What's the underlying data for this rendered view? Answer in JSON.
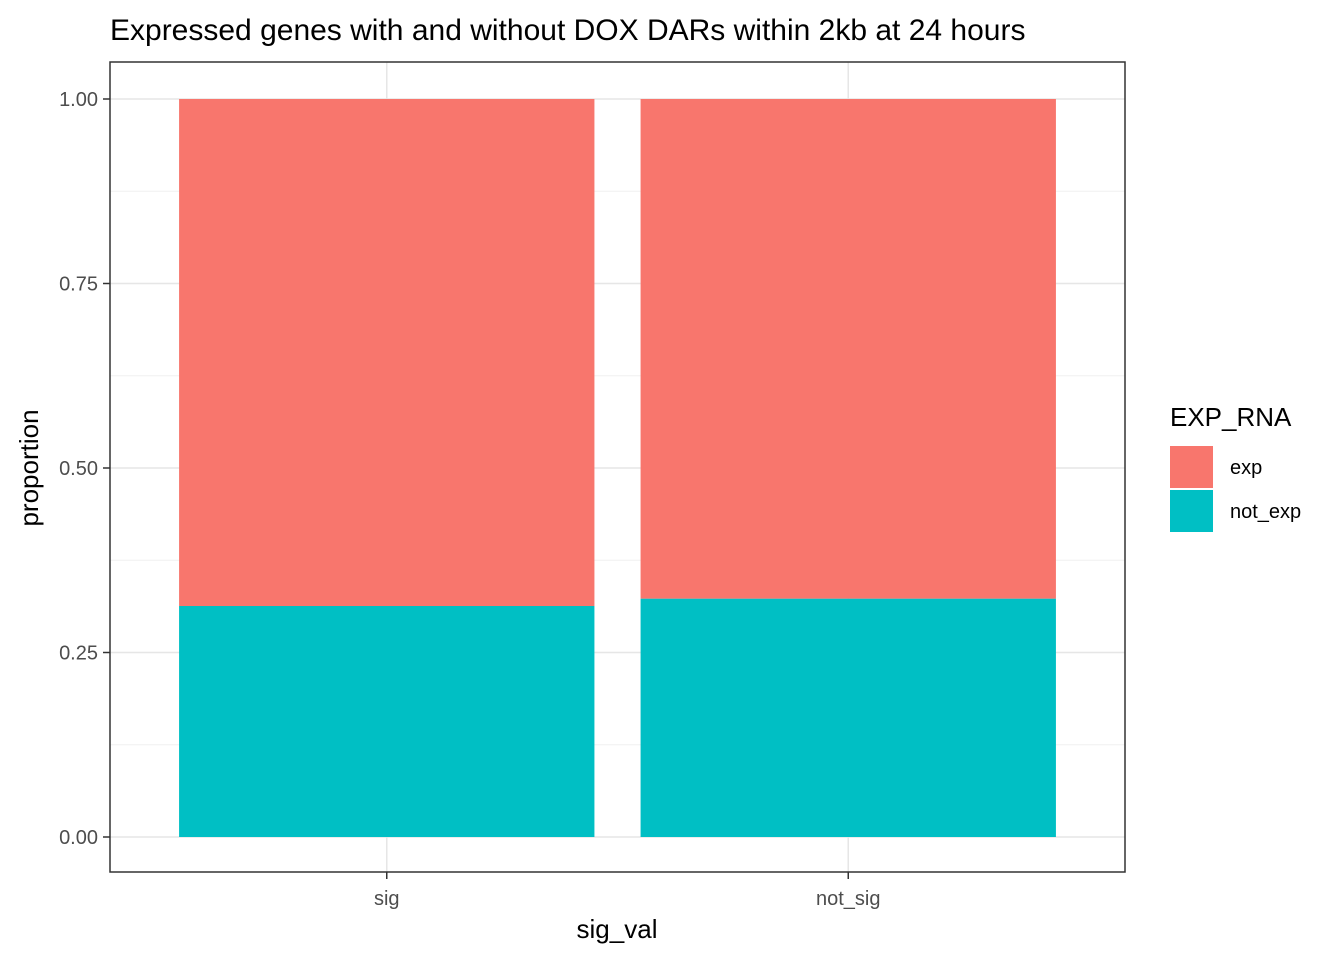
{
  "chart_data": {
    "type": "bar",
    "stacked": true,
    "title": "Expressed genes with and without DOX DARs within 2kb  at 24 hours",
    "xlabel": "sig_val",
    "ylabel": "proportion",
    "categories": [
      "sig",
      "not_sig"
    ],
    "series": [
      {
        "name": "exp",
        "values": [
          0.687,
          0.677
        ],
        "color": "#F8766D"
      },
      {
        "name": "not_exp",
        "values": [
          0.313,
          0.323
        ],
        "color": "#00BFC4"
      }
    ],
    "ylim": [
      0,
      1
    ],
    "yticks": [
      0.0,
      0.25,
      0.5,
      0.75,
      1.0
    ],
    "ytick_labels": [
      "0.00",
      "0.25",
      "0.50",
      "0.75",
      "1.00"
    ],
    "grid": true,
    "legend": {
      "title": "EXP_RNA",
      "position": "right"
    }
  }
}
